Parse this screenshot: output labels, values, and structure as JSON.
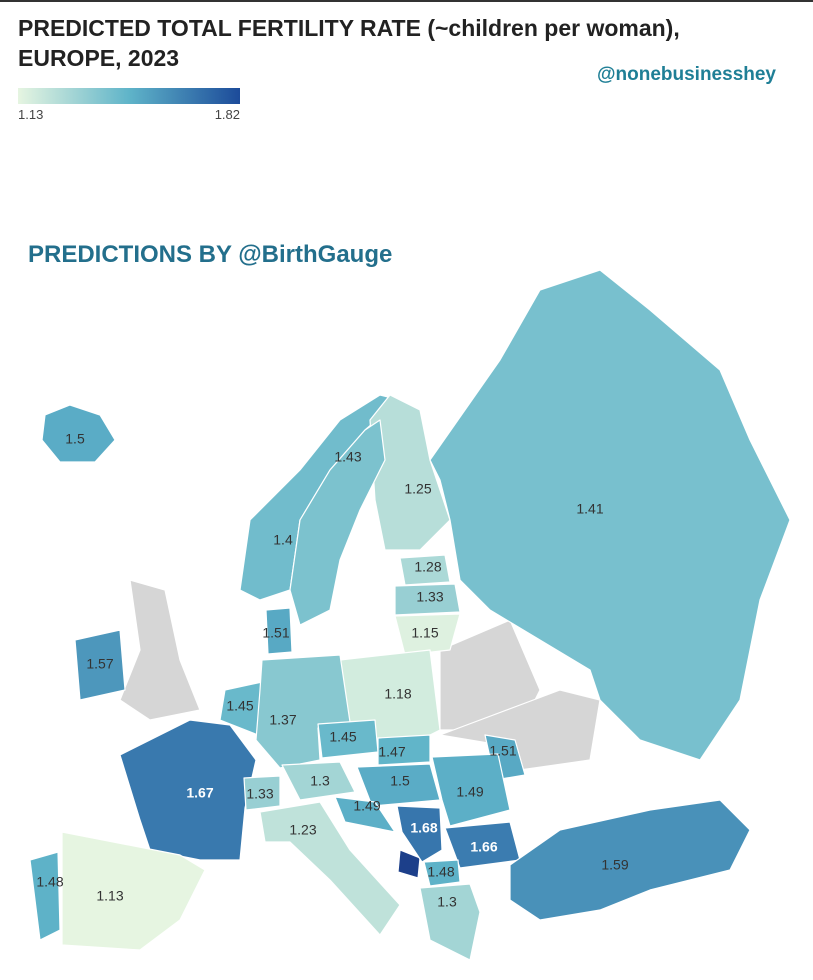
{
  "header": {
    "title_lines": [
      "PREDICTED TOTAL FERTILITY RATE (~children per woman),",
      "EUROPE, 2023"
    ],
    "handle": "@nonebusinesshey"
  },
  "legend": {
    "min": 1.13,
    "max": 1.82
  },
  "subtitle": "PREDICTIONS BY @BirthGauge",
  "regions": [
    {
      "value": 1.5
    },
    {
      "value": 1.43
    },
    {
      "value": 1.25
    },
    {
      "value": 1.41
    },
    {
      "value": 1.4
    },
    {
      "value": 1.28
    },
    {
      "value": 1.33
    },
    {
      "value": 1.51
    },
    {
      "value": 1.15
    },
    {
      "value": 1.57
    },
    {
      "value": 1.18
    },
    {
      "value": 1.45
    },
    {
      "value": 1.37
    },
    {
      "value": 1.45
    },
    {
      "value": 1.47
    },
    {
      "value": 1.51
    },
    {
      "value": 1.67
    },
    {
      "value": 1.33
    },
    {
      "value": 1.3
    },
    {
      "value": 1.5
    },
    {
      "value": 1.49
    },
    {
      "value": 1.49
    },
    {
      "value": 1.23
    },
    {
      "value": 1.68
    },
    {
      "value": 1.66
    },
    {
      "value": 1.59
    },
    {
      "value": 1.48
    },
    {
      "value": 1.13
    },
    {
      "value": 1.48
    },
    {
      "value": 1.3
    }
  ]
}
